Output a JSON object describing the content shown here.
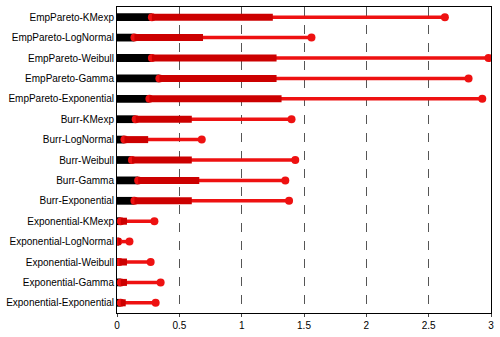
{
  "chart_data": {
    "type": "bar",
    "orientation": "horizontal",
    "categories": [
      "EmpPareto-KMexp",
      "EmpPareto-LogNormal",
      "EmpPareto-Weibull",
      "EmpPareto-Gamma",
      "EmpPareto-Exponential",
      "Burr-KMexp",
      "Burr-LogNormal",
      "Burr-Weibull",
      "Burr-Gamma",
      "Burr-Exponential",
      "Exponential-KMexp",
      "Exponential-LogNormal",
      "Exponential-Weibull",
      "Exponential-Gamma",
      "Exponential-Exponential"
    ],
    "series": [
      {
        "type": "bar",
        "color": "#000000",
        "values": [
          0.28,
          0.14,
          0.28,
          0.34,
          0.26,
          0.15,
          0.06,
          0.12,
          0.17,
          0.14,
          0.03,
          0.01,
          0.02,
          0.03,
          0.03
        ]
      },
      {
        "type": "line",
        "color": "#cc0000",
        "line_style": "thick",
        "values": [
          1.25,
          0.69,
          1.28,
          1.28,
          1.32,
          0.6,
          0.25,
          0.6,
          0.66,
          0.6,
          0.08,
          0.03,
          0.08,
          0.08,
          0.07
        ]
      },
      {
        "type": "line",
        "color": "#ee1111",
        "line_style": "thin",
        "marker": "circle",
        "values": [
          2.63,
          1.56,
          2.98,
          2.82,
          2.93,
          1.4,
          0.68,
          1.43,
          1.35,
          1.38,
          0.3,
          0.1,
          0.27,
          0.35,
          0.31
        ]
      }
    ],
    "xlim": [
      0,
      3
    ],
    "xticks": [
      0,
      0.5,
      1,
      1.5,
      2,
      2.5,
      3
    ],
    "grid": true
  }
}
